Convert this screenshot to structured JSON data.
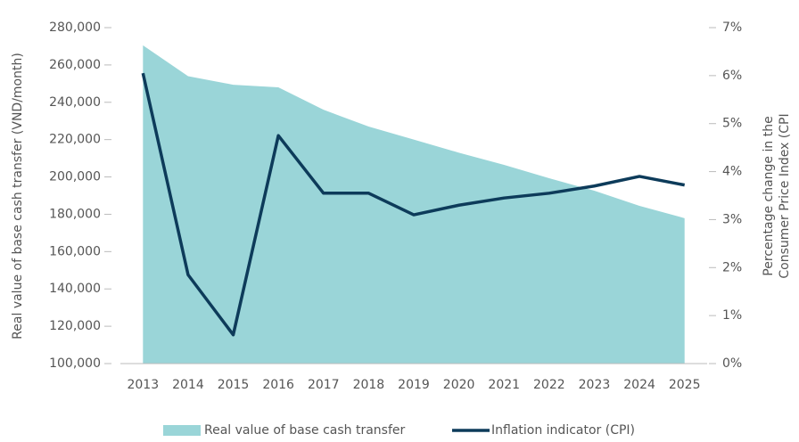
{
  "chart_data": {
    "type": "area_line",
    "ylabel": "Real value of base cash transfer (VND/month)",
    "y2label": [
      "Percentage change in the",
      "Consumer Price Index (CPI"
    ],
    "categories": [
      "2013",
      "2014",
      "2015",
      "2016",
      "2017",
      "2018",
      "2019",
      "2020",
      "2021",
      "2022",
      "2023",
      "2024",
      "2025"
    ],
    "series": [
      {
        "name": "Real value of base cash transfer",
        "color": "#9ad5d8",
        "kind": "area",
        "values": [
          270500,
          254000,
          249400,
          248000,
          236000,
          227000,
          220000,
          213000,
          206500,
          199300,
          192600,
          184500,
          177900
        ]
      },
      {
        "name": "Inflation indicator (CPI)",
        "color": "#0d3b5a",
        "kind": "line",
        "axis": "y2",
        "values": [
          6.05,
          1.85,
          0.6,
          4.75,
          3.55,
          3.55,
          3.1,
          3.3,
          3.45,
          3.55,
          3.7,
          3.9,
          3.72
        ]
      }
    ],
    "ylim": [
      100000,
      280000
    ],
    "yticks": [
      {
        "value": 100000,
        "label": "100,000"
      },
      {
        "value": 120000,
        "label": "120,000"
      },
      {
        "value": 140000,
        "label": "140,000"
      },
      {
        "value": 160000,
        "label": "160,000"
      },
      {
        "value": 180000,
        "label": "180,000"
      },
      {
        "value": 200000,
        "label": "200,000"
      },
      {
        "value": 220000,
        "label": "220,000"
      },
      {
        "value": 240000,
        "label": "240,000"
      },
      {
        "value": 260000,
        "label": "260,000"
      },
      {
        "value": 280000,
        "label": "280,000"
      }
    ],
    "y2lim": [
      0,
      7
    ],
    "y2ticks": [
      {
        "value": 0,
        "label": "0%"
      },
      {
        "value": 1,
        "label": "1%"
      },
      {
        "value": 2,
        "label": "2%"
      },
      {
        "value": 3,
        "label": "3%"
      },
      {
        "value": 4,
        "label": "4%"
      },
      {
        "value": 5,
        "label": "5%"
      },
      {
        "value": 6,
        "label": "6%"
      },
      {
        "value": 7,
        "label": "7%"
      }
    ],
    "legend": "bottom"
  }
}
